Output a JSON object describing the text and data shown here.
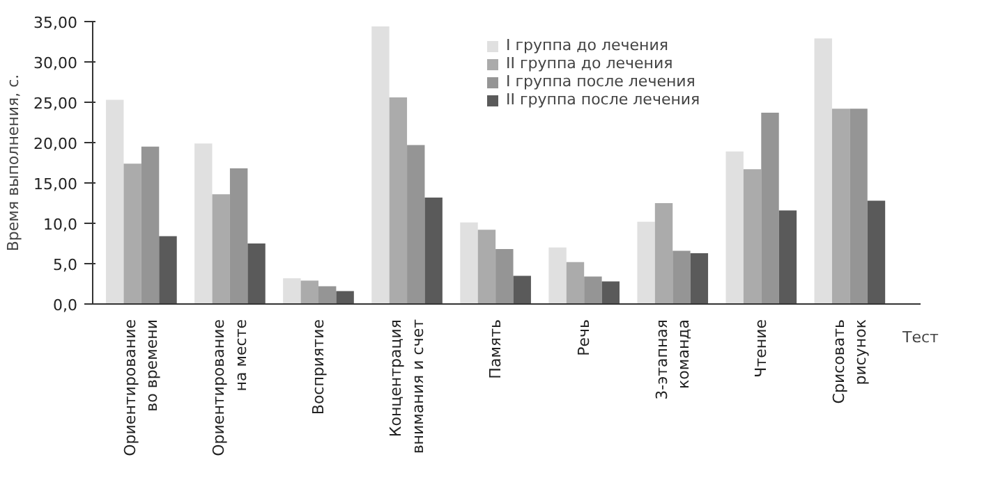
{
  "chart_data": {
    "type": "bar",
    "ylabel": "Время выполнения, с.",
    "xlabel": "Тест",
    "categories": [
      "Ориентирование\nво времени",
      "Ориентирование\nна месте",
      "Восприятие",
      "Концентрация\nвнимания и счет",
      "Память",
      "Речь",
      "3-этапная\nкоманда",
      "Чтение",
      "Срисовать\nрисунок"
    ],
    "series": [
      {
        "name": "I группа до лечения",
        "color": "#e0e0e0",
        "values": [
          25.3,
          19.9,
          3.2,
          34.4,
          10.1,
          7.0,
          10.2,
          18.9,
          32.9
        ]
      },
      {
        "name": "II группа до лечения",
        "color": "#ababab",
        "values": [
          17.4,
          13.6,
          2.9,
          25.6,
          9.2,
          5.2,
          12.5,
          16.7,
          24.2
        ]
      },
      {
        "name": "I группа после лечения",
        "color": "#959595",
        "values": [
          19.5,
          16.8,
          2.2,
          19.7,
          6.8,
          3.4,
          6.6,
          23.7,
          24.2
        ]
      },
      {
        "name": "II группа после лечения",
        "color": "#5a5a5a",
        "values": [
          8.4,
          7.5,
          1.6,
          13.2,
          3.5,
          2.8,
          6.3,
          11.6,
          12.8
        ]
      }
    ],
    "ylim": [
      0,
      35
    ],
    "yticks": [
      {
        "value": 0,
        "label": "0,0"
      },
      {
        "value": 5,
        "label": "5,0"
      },
      {
        "value": 10,
        "label": "10,0"
      },
      {
        "value": 15,
        "label": "15,00"
      },
      {
        "value": 20,
        "label": "20,00"
      },
      {
        "value": 25,
        "label": "25,00"
      },
      {
        "value": 30,
        "label": "30,00"
      },
      {
        "value": 35,
        "label": "35,00"
      }
    ],
    "grid": false,
    "legend": "top"
  }
}
